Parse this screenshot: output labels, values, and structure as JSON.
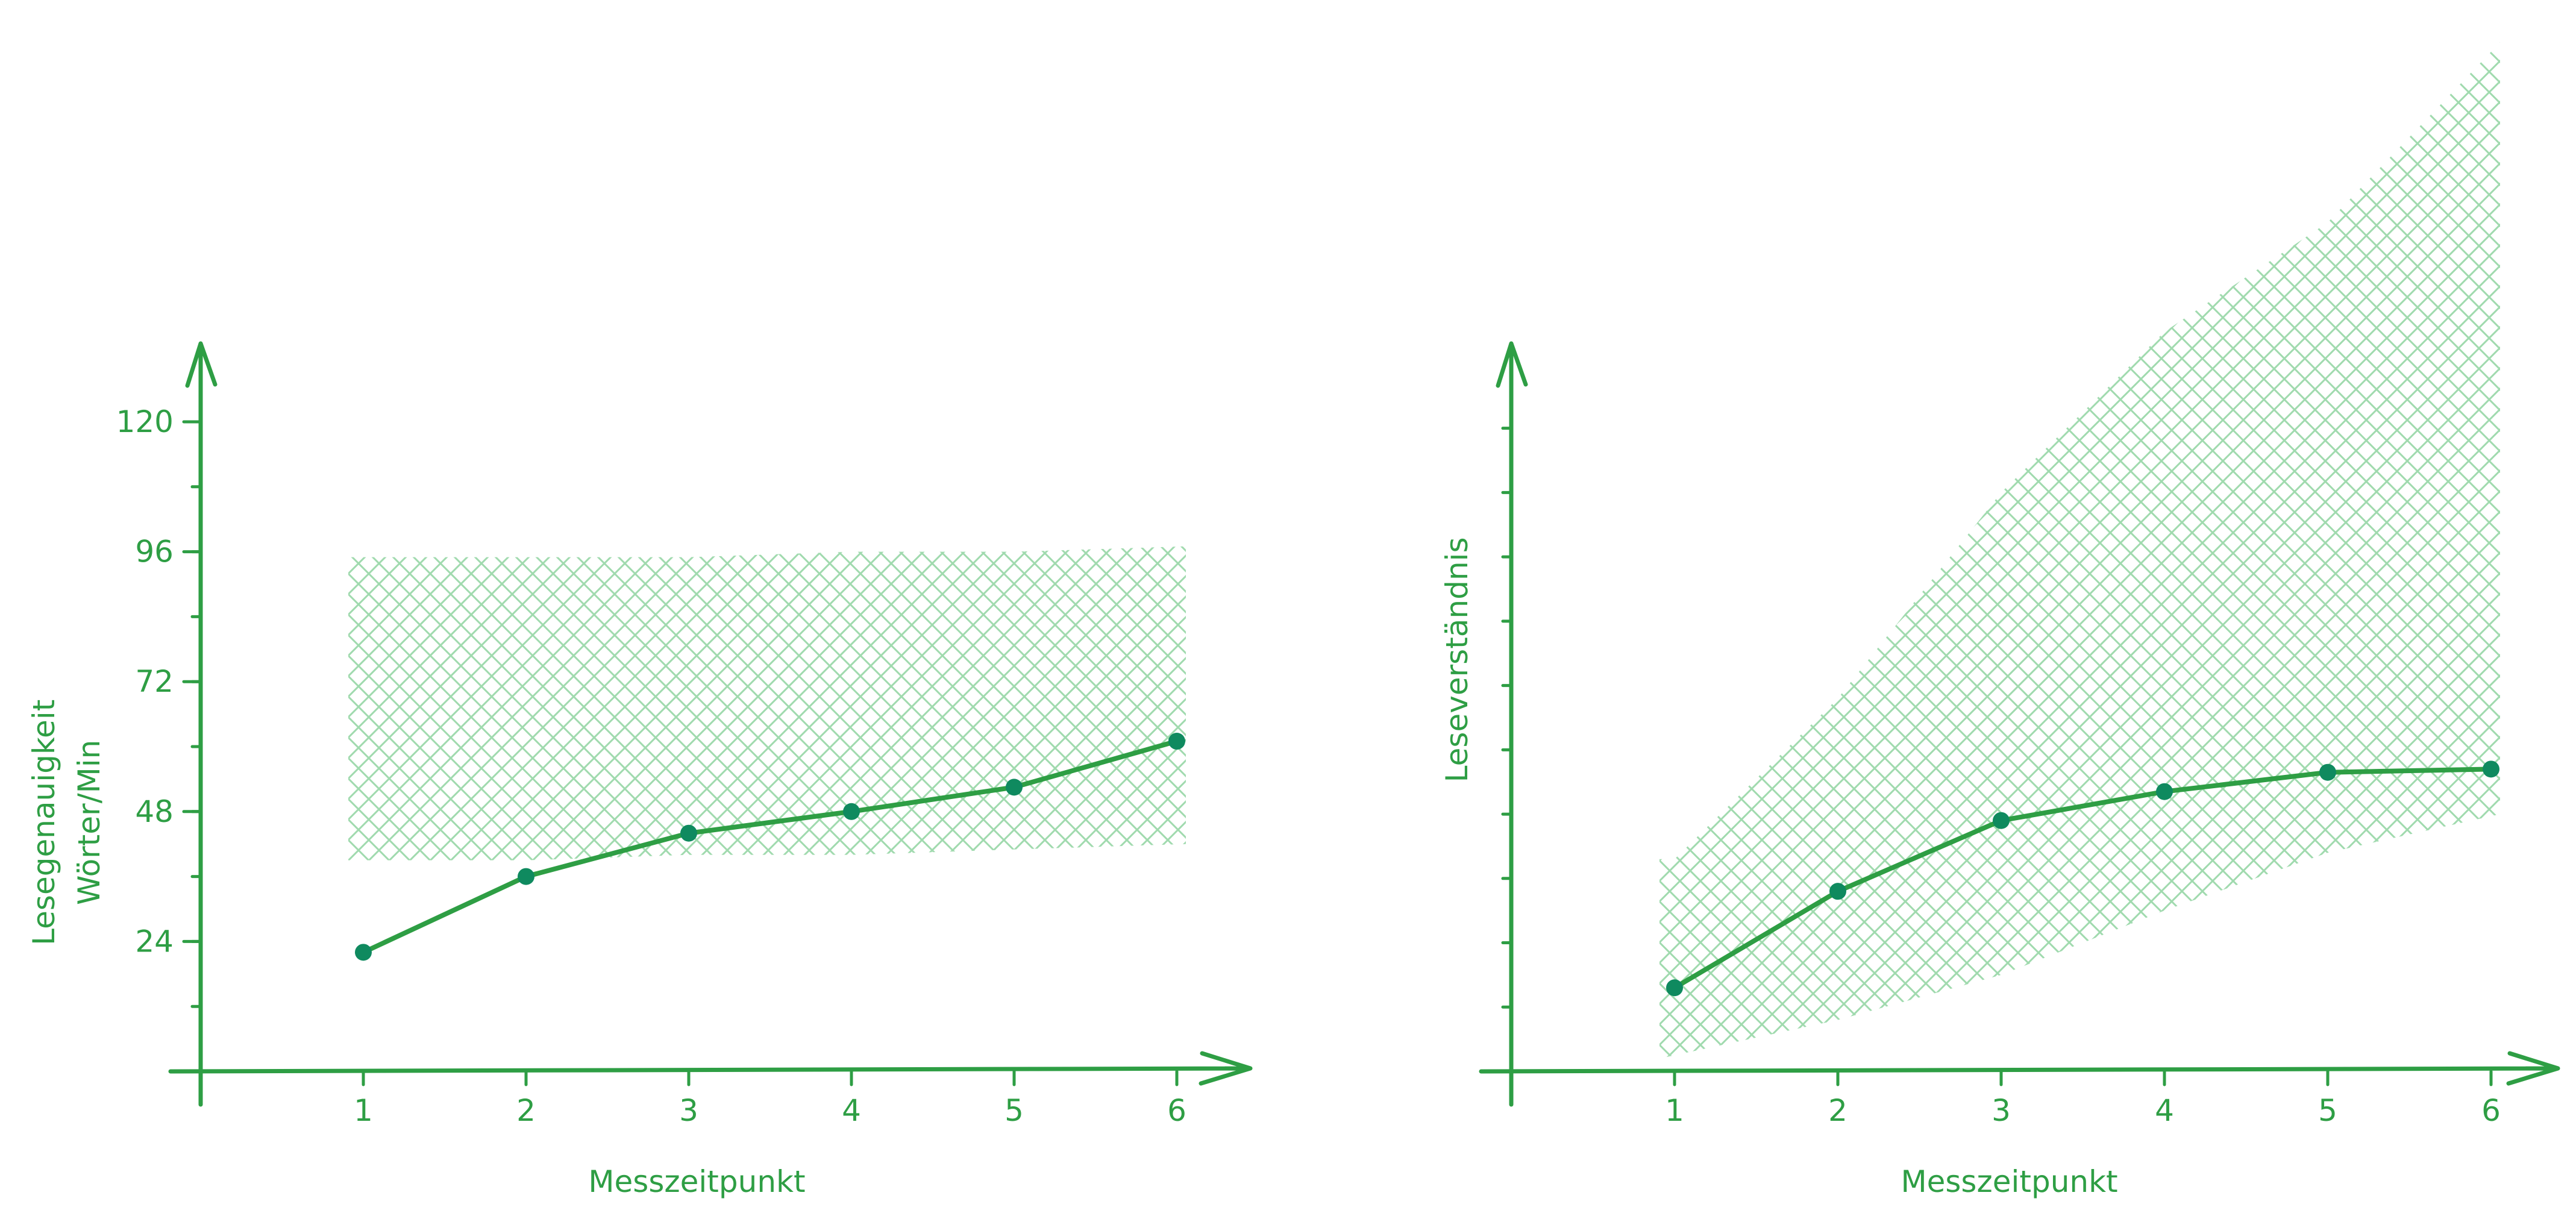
{
  "colors": {
    "line": "#2e9e44",
    "point": "#0f8a5f",
    "band_hatch": "#8fd3a0"
  },
  "chart_data": [
    {
      "type": "line",
      "x": [
        1,
        2,
        3,
        4,
        5,
        6
      ],
      "y": [
        22,
        36,
        44,
        48,
        52.5,
        61
      ],
      "band": {
        "upper": [
          95,
          95,
          95,
          96,
          96,
          97
        ],
        "lower": [
          39,
          39,
          40,
          40,
          41,
          42
        ]
      },
      "x_ticks": [
        "1",
        "2",
        "3",
        "4",
        "5",
        "6"
      ],
      "y_ticks": [
        "24",
        "48",
        "72",
        "96",
        "120"
      ],
      "y_tick_values": [
        24,
        48,
        72,
        96,
        120
      ],
      "xlabel": "Messzeitpunkt",
      "ylabel": "Lesegenauigkeit",
      "ylabel2": "Wörter/Min",
      "xlim": [
        0,
        6.4
      ],
      "ylim": [
        0,
        135
      ],
      "minor_y_step": 12,
      "grid": false
    },
    {
      "type": "line",
      "x": [
        1,
        2,
        3,
        4,
        5,
        6
      ],
      "y": [
        13,
        28,
        39,
        43.5,
        46.5,
        47
      ],
      "band": {
        "upper": [
          33,
          58,
          90,
          115,
          132,
          160
        ],
        "lower": [
          2,
          8,
          15,
          25,
          34,
          40
        ]
      },
      "x_ticks": [
        "1",
        "2",
        "3",
        "4",
        "5",
        "6"
      ],
      "y_ticks": [],
      "xlabel": "Messzeitpunkt",
      "ylabel": "Leseverständnis",
      "xlim": [
        0,
        6.4
      ],
      "ylim": [
        0,
        110
      ],
      "minor_y_step": 10,
      "grid": false
    }
  ]
}
